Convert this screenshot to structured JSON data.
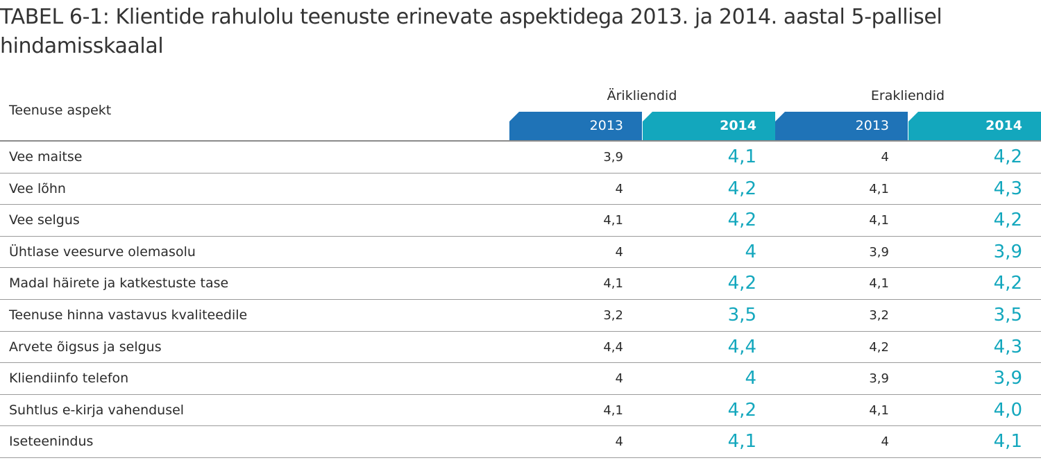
{
  "title": "TABEL 6-1: Klientide rahulolu teenuste erinevate aspektidega 2013. ja 2014. aastal 5-pallisel hindamisskaalal",
  "table": {
    "aspect_header": "Teenuse aspekt",
    "groups": [
      {
        "label": "Ärikliendid",
        "years": [
          "2013",
          "2014"
        ]
      },
      {
        "label": "Erakliendid",
        "years": [
          "2013",
          "2014"
        ]
      }
    ],
    "colors": {
      "tab_dark": "#1f73b7",
      "tab_light": "#13a7bd",
      "highlight_text": "#13a7bd"
    },
    "rows": [
      {
        "aspect": "Vee maitse",
        "a2013": "3,9",
        "a2014": "4,1",
        "e2013": "4",
        "e2014": "4,2"
      },
      {
        "aspect": "Vee lõhn",
        "a2013": "4",
        "a2014": "4,2",
        "e2013": "4,1",
        "e2014": "4,3"
      },
      {
        "aspect": "Vee selgus",
        "a2013": "4,1",
        "a2014": "4,2",
        "e2013": "4,1",
        "e2014": "4,2"
      },
      {
        "aspect": "Ühtlase veesurve olemasolu",
        "a2013": "4",
        "a2014": "4",
        "e2013": "3,9",
        "e2014": "3,9"
      },
      {
        "aspect": "Madal häirete ja katkestuste tase",
        "a2013": "4,1",
        "a2014": "4,2",
        "e2013": "4,1",
        "e2014": "4,2"
      },
      {
        "aspect": "Teenuse hinna vastavus kvaliteedile",
        "a2013": "3,2",
        "a2014": "3,5",
        "e2013": "3,2",
        "e2014": "3,5"
      },
      {
        "aspect": "Arvete õigsus ja selgus",
        "a2013": "4,4",
        "a2014": "4,4",
        "e2013": "4,2",
        "e2014": "4,3"
      },
      {
        "aspect": "Kliendiinfo telefon",
        "a2013": "4",
        "a2014": "4",
        "e2013": "3,9",
        "e2014": "3,9"
      },
      {
        "aspect": "Suhtlus e-kirja vahendusel",
        "a2013": "4,1",
        "a2014": "4,2",
        "e2013": "4,1",
        "e2014": "4,0"
      },
      {
        "aspect": "Iseteenindus",
        "a2013": "4",
        "a2014": "4,1",
        "e2013": "4",
        "e2014": "4,1"
      }
    ]
  }
}
